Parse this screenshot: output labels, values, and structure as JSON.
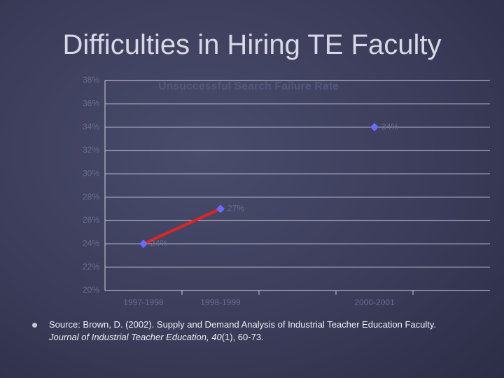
{
  "title": "Difficulties in Hiring TE Faculty",
  "chart_data": {
    "type": "line",
    "title": "Unsuccessful Search Failure Rate",
    "categories": [
      "1997-1998",
      "1998-1999",
      null,
      "2000-2001"
    ],
    "series": [
      {
        "color": "#e02424",
        "marker_color": "#6b6bff",
        "values": [
          24,
          27,
          null,
          34
        ],
        "value_labels": [
          "24%",
          "27%",
          null,
          "34%"
        ]
      }
    ],
    "ylim": [
      20,
      38
    ],
    "yticks": [
      {
        "value": 20,
        "label": "20%"
      },
      {
        "value": 22,
        "label": "22%"
      },
      {
        "value": 24,
        "label": "24%"
      },
      {
        "value": 26,
        "label": "26%"
      },
      {
        "value": 28,
        "label": "28%"
      },
      {
        "value": 30,
        "label": "30%"
      },
      {
        "value": 32,
        "label": "32%"
      },
      {
        "value": 34,
        "label": "34%"
      },
      {
        "value": 36,
        "label": "36%"
      },
      {
        "value": 38,
        "label": "38%"
      }
    ],
    "grid": true
  },
  "source": {
    "text": "Source: Brown, D. (2002). Supply and Demand Analysis of Industrial Teacher Education Faculty.",
    "journal": "Journal of Industrial Teacher Education, 40",
    "rest": "(1), 60-73."
  }
}
